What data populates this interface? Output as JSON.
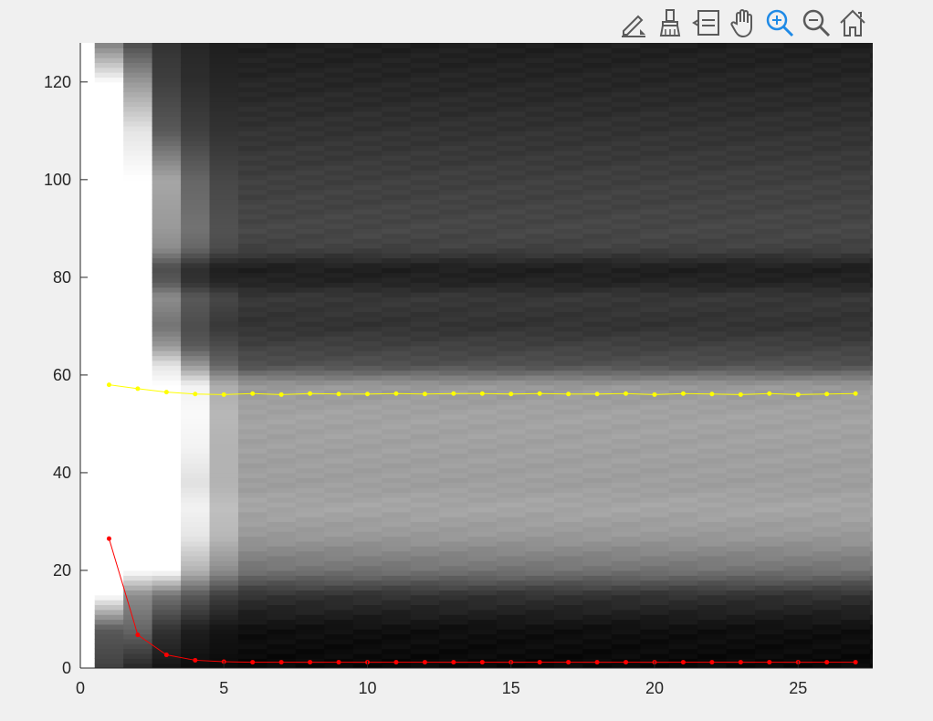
{
  "toolbar": {
    "buttons": [
      {
        "name": "edit-plot-icon"
      },
      {
        "name": "brush-icon"
      },
      {
        "name": "data-tips-icon"
      },
      {
        "name": "pan-hand-icon"
      },
      {
        "name": "zoom-in-icon"
      },
      {
        "name": "zoom-out-icon"
      },
      {
        "name": "home-icon"
      }
    ],
    "active_color": "#1f8ae6",
    "icon_color": "#5a5a5a"
  },
  "chart_data": {
    "type": "heatmap",
    "colormap": "gray",
    "xlim": [
      0,
      27.6
    ],
    "ylim": [
      0,
      128
    ],
    "xticks": [
      0,
      5,
      10,
      15,
      20,
      25
    ],
    "yticks": [
      0,
      20,
      40,
      60,
      80,
      100,
      120
    ],
    "xlabel": "",
    "ylabel": "",
    "title": "",
    "series": [
      {
        "color": "#ffff00",
        "x": [
          1,
          2,
          3,
          4,
          5,
          6,
          7,
          8,
          9,
          10,
          11,
          12,
          13,
          14,
          15,
          16,
          17,
          18,
          19,
          20,
          21,
          22,
          23,
          24,
          25,
          26,
          27
        ],
        "y": [
          58,
          57.2,
          56.5,
          56.1,
          56,
          56.2,
          56,
          56.2,
          56.1,
          56.1,
          56.2,
          56.1,
          56.2,
          56.2,
          56.1,
          56.2,
          56.1,
          56.1,
          56.2,
          56,
          56.2,
          56.1,
          56,
          56.2,
          56,
          56.1,
          56.2
        ]
      },
      {
        "color": "#ff0000",
        "x": [
          1,
          2,
          3,
          4,
          5,
          6,
          7,
          8,
          9,
          10,
          11,
          12,
          13,
          14,
          15,
          16,
          17,
          18,
          19,
          20,
          21,
          22,
          23,
          24,
          25,
          26,
          27
        ],
        "y": [
          26.5,
          6.8,
          2.7,
          1.6,
          1.3,
          1.2,
          1.2,
          1.2,
          1.2,
          1.2,
          1.2,
          1.2,
          1.2,
          1.2,
          1.2,
          1.2,
          1.2,
          1.2,
          1.2,
          1.2,
          1.2,
          1.2,
          1.2,
          1.2,
          1.2,
          1.2,
          1.2
        ]
      }
    ],
    "heatmap_profile": {
      "description_columns": [
        1,
        2,
        3,
        4,
        5,
        6
      ],
      "y_breakpoints": [
        0,
        8,
        15,
        20,
        27,
        33,
        38,
        45,
        52,
        58,
        62,
        66,
        70,
        76,
        79,
        82,
        86,
        90,
        100,
        110,
        120,
        128
      ],
      "column_1": [
        0.25,
        0.35,
        1,
        1,
        1,
        1,
        1,
        1,
        1,
        1,
        1,
        1,
        1,
        1,
        1,
        1,
        1,
        1,
        1,
        1,
        1,
        0.5
      ],
      "column_2": [
        0.15,
        0.4,
        0.55,
        1,
        1,
        1,
        1,
        1,
        1,
        1,
        1,
        1,
        1,
        1,
        1,
        1,
        1,
        1,
        1,
        0.9,
        0.6,
        0.3
      ],
      "column_3": [
        0.08,
        0.2,
        0.45,
        1,
        1,
        1,
        1,
        1,
        1,
        1,
        0.9,
        0.6,
        0.45,
        0.55,
        0.35,
        0.3,
        0.55,
        0.6,
        0.65,
        0.35,
        0.25,
        0.2
      ],
      "column_4": [
        0.05,
        0.12,
        0.35,
        0.7,
        0.9,
        0.95,
        0.88,
        0.95,
        0.98,
        0.95,
        0.6,
        0.35,
        0.3,
        0.35,
        0.2,
        0.18,
        0.4,
        0.45,
        0.4,
        0.25,
        0.18,
        0.15
      ],
      "column_5": [
        0.04,
        0.08,
        0.25,
        0.55,
        0.72,
        0.75,
        0.7,
        0.7,
        0.72,
        0.68,
        0.4,
        0.3,
        0.22,
        0.28,
        0.15,
        0.12,
        0.3,
        0.32,
        0.28,
        0.2,
        0.15,
        0.12
      ],
      "column_rest": [
        0.03,
        0.06,
        0.2,
        0.45,
        0.6,
        0.65,
        0.62,
        0.63,
        0.64,
        0.6,
        0.32,
        0.26,
        0.2,
        0.22,
        0.14,
        0.12,
        0.26,
        0.28,
        0.25,
        0.2,
        0.15,
        0.12
      ]
    }
  }
}
